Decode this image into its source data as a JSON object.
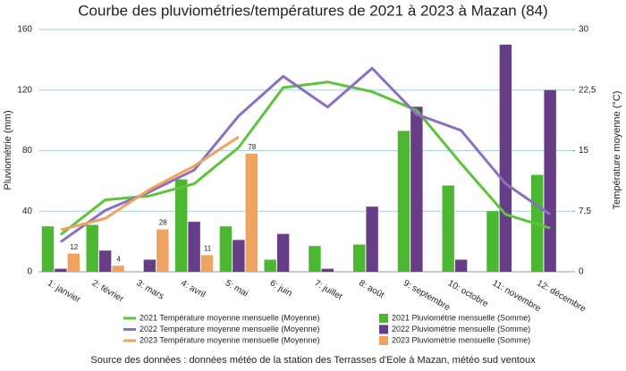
{
  "chart_data": {
    "type": "bar",
    "title": "Courbe des pluviométries/températures de 2021 à 2023 à Mazan (84)",
    "y_label": "Pluviométrie (mm)",
    "y2_label": "Température moyenne (°C)",
    "source": "Source des données : données météo de la station des Terrasses d'Eole à Mazan, météo sud ventoux",
    "categories": [
      "1: janvier",
      "2: février",
      "3: mars",
      "4: avril",
      "5: mai",
      "6: juin",
      "7: juillet",
      "8: août",
      "9: septembre",
      "10: octobre",
      "11: novembre",
      "12: décembre"
    ],
    "ylim": [
      0,
      160
    ],
    "yticks": [
      0,
      40,
      80,
      120,
      160
    ],
    "y2lim": [
      0,
      30
    ],
    "y2ticks": [
      0,
      {
        "value": 7.5,
        "label": "7,5"
      },
      15,
      {
        "value": 22.5,
        "label": "22,5"
      },
      30
    ],
    "grid": true,
    "series": [
      {
        "name": "2021 Pluviométrie mensuelle (Somme)",
        "type": "bar",
        "color": "#4cb832",
        "values": [
          30,
          31,
          0,
          61,
          30,
          8,
          17,
          18,
          93,
          57,
          40,
          64
        ]
      },
      {
        "name": "2022 Pluviométrie mensuelle (Somme)",
        "type": "bar",
        "color": "#673d87",
        "values": [
          2,
          14,
          8,
          33,
          21,
          25,
          2,
          43,
          109,
          8,
          150,
          120
        ]
      },
      {
        "name": "2023 Pluviométrie mensuelle (Somme)",
        "type": "bar",
        "color": "#f0a35e",
        "values": [
          12,
          4,
          28,
          11,
          78,
          null,
          null,
          null,
          null,
          null,
          null,
          null
        ],
        "data_labels": true
      },
      {
        "name": "2021 Température moyenne mensuelle (Moyenne)",
        "type": "line",
        "axis": "y2",
        "color": "#5ec43d",
        "values": [
          4.6,
          8.9,
          9.4,
          10.9,
          15.4,
          22.8,
          23.5,
          22.3,
          20,
          13.4,
          7.1,
          5.4
        ]
      },
      {
        "name": "2022 Température moyenne mensuelle (Moyenne)",
        "type": "line",
        "axis": "y2",
        "color": "#8a70c2",
        "values": [
          3.7,
          7.6,
          9.9,
          12.6,
          19.3,
          24.2,
          20.4,
          25.2,
          19.5,
          17.5,
          10.9,
          7.1
        ]
      },
      {
        "name": "2023 Température moyenne mensuelle (Moyenne)",
        "type": "line",
        "axis": "y2",
        "color": "#f0a35e",
        "values": [
          5.2,
          6.6,
          10.2,
          13.1,
          16.7,
          null,
          null,
          null,
          null,
          null,
          null,
          null
        ]
      }
    ]
  }
}
